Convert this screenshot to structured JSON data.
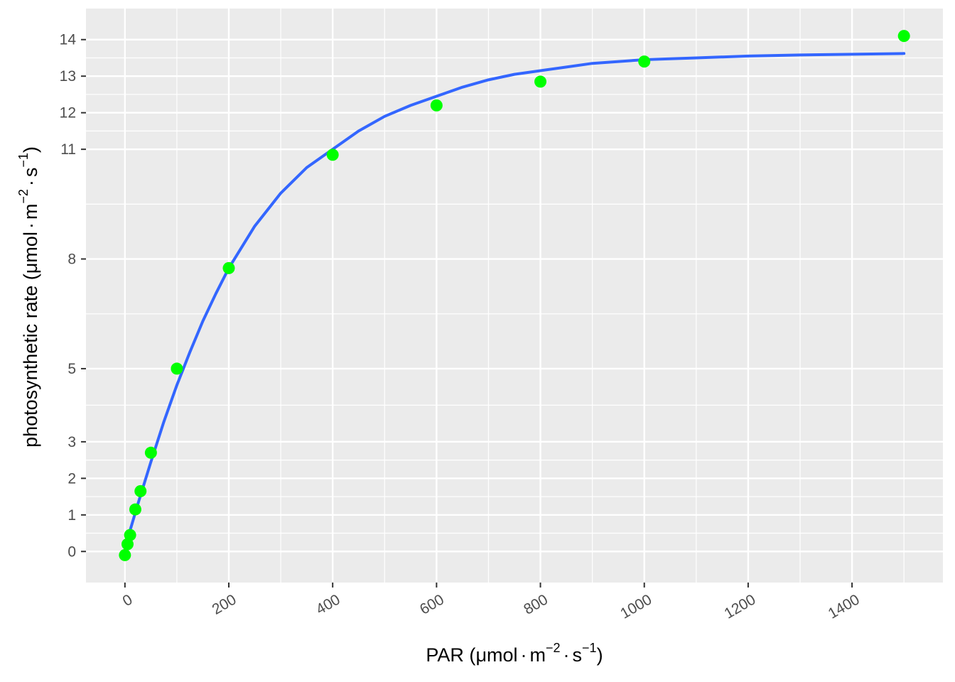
{
  "chart_data": {
    "type": "scatter",
    "title": "",
    "xlabel": {
      "main": "PAR (",
      "mu": "μ",
      "unit": "mol",
      "dot": "·",
      "m": "m",
      "m_exp": "−2",
      "s": "s",
      "s_exp": "−1",
      "close": ")"
    },
    "ylabel": {
      "main": "photosynthetic rate (",
      "mu": "μ",
      "unit": "mol",
      "dot": "·",
      "m": "m",
      "m_exp": "−2",
      "s": "s",
      "s_exp": "−1",
      "close": ")"
    },
    "xlim": [
      -75,
      1575
    ],
    "ylim": [
      -0.85,
      14.85
    ],
    "x_ticks": [
      0,
      200,
      400,
      600,
      800,
      1000,
      1200,
      1400
    ],
    "x_tick_labels": [
      "0",
      "200",
      "400",
      "600",
      "800",
      "1000",
      "1200",
      "1400"
    ],
    "x_minor_ticks": [
      100,
      300,
      500,
      700,
      900,
      1100,
      1300,
      1500
    ],
    "y_ticks": [
      0,
      1,
      2,
      3,
      5,
      8,
      11,
      12,
      13,
      14
    ],
    "y_tick_labels": [
      "0",
      "1",
      "2",
      "3",
      "5",
      "8",
      "11",
      "12",
      "13",
      "14"
    ],
    "y_minor_ticks": [
      0.5,
      1.5,
      2.5,
      4,
      6.5,
      9.5,
      11.5,
      12.5,
      13.5
    ],
    "grid": true,
    "legend": "none",
    "series": [
      {
        "type": "scatter",
        "color": "#00FF00",
        "points": [
          {
            "x": 0,
            "y": -0.1
          },
          {
            "x": 5,
            "y": 0.2
          },
          {
            "x": 10,
            "y": 0.45
          },
          {
            "x": 20,
            "y": 1.15
          },
          {
            "x": 30,
            "y": 1.65
          },
          {
            "x": 50,
            "y": 2.7
          },
          {
            "x": 100,
            "y": 5.0
          },
          {
            "x": 200,
            "y": 7.75
          },
          {
            "x": 400,
            "y": 10.85
          },
          {
            "x": 600,
            "y": 12.2
          },
          {
            "x": 800,
            "y": 12.85
          },
          {
            "x": 1000,
            "y": 13.4
          },
          {
            "x": 1500,
            "y": 14.1
          }
        ]
      },
      {
        "type": "line",
        "color": "#3366FF",
        "points": [
          {
            "x": 0,
            "y": 0.1
          },
          {
            "x": 25,
            "y": 1.3
          },
          {
            "x": 50,
            "y": 2.45
          },
          {
            "x": 75,
            "y": 3.55
          },
          {
            "x": 100,
            "y": 4.55
          },
          {
            "x": 125,
            "y": 5.45
          },
          {
            "x": 150,
            "y": 6.3
          },
          {
            "x": 175,
            "y": 7.05
          },
          {
            "x": 200,
            "y": 7.75
          },
          {
            "x": 250,
            "y": 8.9
          },
          {
            "x": 300,
            "y": 9.8
          },
          {
            "x": 350,
            "y": 10.5
          },
          {
            "x": 400,
            "y": 11.0
          },
          {
            "x": 450,
            "y": 11.5
          },
          {
            "x": 500,
            "y": 11.9
          },
          {
            "x": 550,
            "y": 12.2
          },
          {
            "x": 600,
            "y": 12.45
          },
          {
            "x": 650,
            "y": 12.7
          },
          {
            "x": 700,
            "y": 12.9
          },
          {
            "x": 750,
            "y": 13.05
          },
          {
            "x": 800,
            "y": 13.15
          },
          {
            "x": 850,
            "y": 13.25
          },
          {
            "x": 900,
            "y": 13.35
          },
          {
            "x": 1000,
            "y": 13.45
          },
          {
            "x": 1100,
            "y": 13.5
          },
          {
            "x": 1200,
            "y": 13.55
          },
          {
            "x": 1300,
            "y": 13.58
          },
          {
            "x": 1400,
            "y": 13.6
          },
          {
            "x": 1500,
            "y": 13.62
          }
        ]
      }
    ]
  },
  "colors": {
    "panel": "#EBEBEB",
    "grid": "#FFFFFF",
    "tick": "#333333"
  }
}
